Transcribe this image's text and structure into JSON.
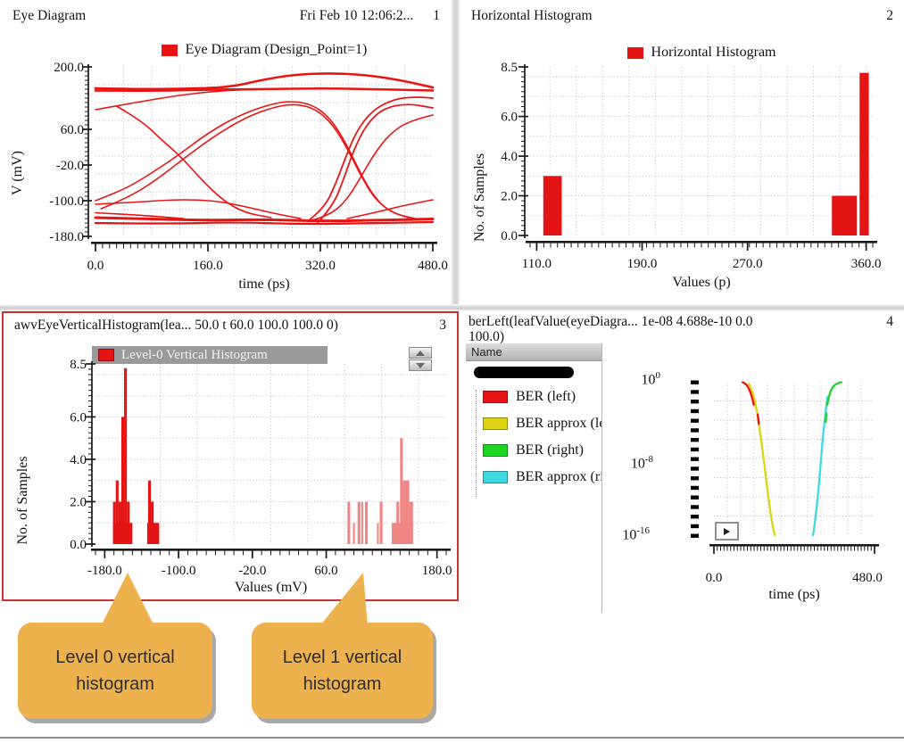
{
  "panels": {
    "eye": {
      "title": "Eye Diagram",
      "timestamp": "Fri Feb 10 12:06:2...",
      "number": "1"
    },
    "hhist": {
      "title": "Horizontal Histogram",
      "number": "2"
    },
    "vhist": {
      "title": "awvEyeVerticalHistogram(lea...  50.0 t 60.0 100.0 100.0 0)",
      "number": "3"
    },
    "ber": {
      "title": "berLeft(leafValue(eyeDiagra...  1e-08  4.688e-10  0.0",
      "title_line2": "100.0)",
      "number": "4",
      "name_column_header": "Name",
      "legend": [
        {
          "label": "BER (left)",
          "color": "#e81414"
        },
        {
          "label": "BER approx (left",
          "color": "#ddd313"
        },
        {
          "label": "BER (right)",
          "color": "#1ed321"
        },
        {
          "label": "BER approx (rig",
          "color": "#3fd9e2"
        }
      ]
    }
  },
  "callouts": [
    {
      "text": "Level 0 vertical histogram"
    },
    {
      "text": "Level 1 vertical histogram"
    }
  ],
  "colors": {
    "trace_red": "#e81414",
    "hist_red": "#e51414",
    "hist_pink": "#ef8585",
    "legend_gray": "#9a9a9a",
    "panel_border_red": "#c9322e",
    "callout_fill": "#edb24e"
  },
  "chart_data": [
    {
      "id": "eye",
      "type": "line",
      "title": "Eye Diagram (Design_Point=1)",
      "xlabel": "time (ps)",
      "ylabel": "V (mV)",
      "xlim": [
        0,
        480
      ],
      "ylim": [
        -180,
        200
      ],
      "grid": true,
      "xticks": [
        {
          "v": 0,
          "label": "0.0"
        },
        {
          "v": 160,
          "label": "160.0"
        },
        {
          "v": 320,
          "label": "320.0"
        },
        {
          "v": 480,
          "label": "480.0"
        }
      ],
      "yticks": [
        {
          "v": 200,
          "label": "200.0"
        },
        {
          "v": 60,
          "label": "60.0"
        },
        {
          "v": -20,
          "label": "-20.0"
        },
        {
          "v": -100,
          "label": "-100.0"
        },
        {
          "v": -180,
          "label": "-180.0"
        }
      ],
      "color": "#e81414",
      "traces": [
        {
          "w": 2.6,
          "pts": [
            [
              0,
              152
            ],
            [
              60,
              150
            ],
            [
              125,
              151
            ],
            [
              190,
              154
            ],
            [
              240,
              172
            ],
            [
              285,
              183
            ],
            [
              335,
              186
            ],
            [
              385,
              182
            ],
            [
              435,
              170
            ],
            [
              480,
              154
            ]
          ]
        },
        {
          "w": 2.6,
          "pts": [
            [
              0,
              147
            ],
            [
              80,
              146
            ],
            [
              160,
              149
            ],
            [
              240,
              150
            ],
            [
              320,
              152
            ],
            [
              400,
              150
            ],
            [
              480,
              147
            ]
          ]
        },
        {
          "w": 1.6,
          "pts": [
            [
              0,
              104
            ],
            [
              60,
              121
            ],
            [
              120,
              137
            ],
            [
              180,
              147
            ],
            [
              240,
              150
            ]
          ]
        },
        {
          "w": 1.6,
          "pts": [
            [
              30,
              112
            ],
            [
              65,
              80
            ],
            [
              95,
              35
            ],
            [
              122,
              -2
            ],
            [
              152,
              -55
            ],
            [
              182,
              -100
            ],
            [
              212,
              -127
            ],
            [
              250,
              -138
            ]
          ]
        },
        {
          "w": 1.6,
          "pts": [
            [
              0,
              -100
            ],
            [
              40,
              -76
            ],
            [
              78,
              -40
            ],
            [
              118,
              2
            ],
            [
              160,
              52
            ],
            [
              205,
              92
            ],
            [
              248,
              116
            ],
            [
              278,
              124
            ],
            [
              308,
              116
            ],
            [
              332,
              88
            ],
            [
              352,
              42
            ],
            [
              372,
              -22
            ],
            [
              392,
              -82
            ],
            [
              415,
              -122
            ],
            [
              445,
              -138
            ]
          ]
        },
        {
          "w": 1.6,
          "pts": [
            [
              8,
              -118
            ],
            [
              48,
              -92
            ],
            [
              86,
              -54
            ],
            [
              122,
              -10
            ],
            [
              168,
              44
            ],
            [
              215,
              88
            ],
            [
              258,
              112
            ],
            [
              288,
              117
            ],
            [
              315,
              104
            ],
            [
              338,
              70
            ],
            [
              358,
              18
            ],
            [
              378,
              -45
            ],
            [
              398,
              -98
            ],
            [
              425,
              -130
            ],
            [
              455,
              -140
            ]
          ]
        },
        {
          "w": 1.8,
          "pts": [
            [
              302,
              -146
            ],
            [
              325,
              -118
            ],
            [
              342,
              -62
            ],
            [
              356,
              -2
            ],
            [
              372,
              58
            ],
            [
              395,
              104
            ],
            [
              425,
              128
            ],
            [
              455,
              133
            ],
            [
              480,
              130
            ]
          ]
        },
        {
          "w": 1.8,
          "pts": [
            [
              316,
              -150
            ],
            [
              338,
              -112
            ],
            [
              354,
              -48
            ],
            [
              368,
              16
            ],
            [
              386,
              72
            ],
            [
              410,
              108
            ],
            [
              445,
              118
            ],
            [
              480,
              108
            ]
          ]
        },
        {
          "w": 1.6,
          "pts": [
            [
              480,
              92
            ],
            [
              448,
              80
            ],
            [
              420,
              52
            ],
            [
              398,
              8
            ],
            [
              380,
              -40
            ],
            [
              362,
              -88
            ],
            [
              344,
              -120
            ],
            [
              322,
              -138
            ],
            [
              302,
              -146
            ]
          ]
        },
        {
          "w": 3.0,
          "pts": [
            [
              0,
              -138
            ],
            [
              80,
              -141
            ],
            [
              160,
              -144
            ],
            [
              240,
              -142
            ],
            [
              320,
              -146
            ],
            [
              400,
              -144
            ],
            [
              480,
              -141
            ]
          ]
        },
        {
          "w": 2.2,
          "pts": [
            [
              0,
              -150
            ],
            [
              100,
              -152
            ],
            [
              200,
              -148
            ],
            [
              300,
              -153
            ],
            [
              400,
              -150
            ],
            [
              480,
              -148
            ]
          ]
        },
        {
          "w": 1.6,
          "pts": [
            [
              0,
              -108
            ],
            [
              60,
              -103
            ],
            [
              120,
              -97
            ],
            [
              170,
              -100
            ],
            [
              210,
              -112
            ],
            [
              252,
              -128
            ],
            [
              292,
              -140
            ]
          ]
        },
        {
          "w": 1.6,
          "pts": [
            [
              480,
              -98
            ],
            [
              440,
              -110
            ],
            [
              400,
              -126
            ],
            [
              358,
              -140
            ]
          ]
        },
        {
          "w": 1.6,
          "pts": [
            [
              0,
              -127
            ],
            [
              60,
              -132
            ],
            [
              125,
              -140
            ]
          ]
        }
      ]
    },
    {
      "id": "hhist",
      "type": "bar",
      "title": "Horizontal Histogram",
      "xlabel": "Values (p)",
      "ylabel": "No. of Samples",
      "xlim": [
        105,
        365
      ],
      "ylim": [
        0,
        8.5
      ],
      "grid": true,
      "xticks": [
        {
          "v": 110,
          "label": "110.0"
        },
        {
          "v": 190,
          "label": "190.0"
        },
        {
          "v": 270,
          "label": "270.0"
        },
        {
          "v": 360,
          "label": "360.0"
        }
      ],
      "yticks": [
        {
          "v": 8.5,
          "label": "8.5"
        },
        {
          "v": 6,
          "label": "6.0"
        },
        {
          "v": 4,
          "label": "4.0"
        },
        {
          "v": 2,
          "label": "2.0"
        },
        {
          "v": 0,
          "label": "0.0"
        }
      ],
      "color": "#e51414",
      "bars": [
        {
          "x0": 115,
          "x1": 129,
          "h": 3.0
        },
        {
          "x0": 334,
          "x1": 353,
          "h": 2.0
        },
        {
          "x0": 355,
          "x1": 362,
          "h": 8.2
        }
      ]
    },
    {
      "id": "vhist",
      "type": "bar",
      "title": "Level-0 Vertical Histogram",
      "xlabel": "Values (mV)",
      "ylabel": "No. of Samples",
      "xlim": [
        -190,
        190
      ],
      "ylim": [
        0,
        8.5
      ],
      "grid": true,
      "xticks": [
        {
          "v": -180,
          "label": "-180.0"
        },
        {
          "v": -100,
          "label": "-100.0"
        },
        {
          "v": -20,
          "label": "-20.0"
        },
        {
          "v": 60,
          "label": "60.0"
        },
        {
          "v": 180,
          "label": "180.0"
        }
      ],
      "yticks": [
        {
          "v": 8.5,
          "label": "8.5"
        },
        {
          "v": 6,
          "label": "6.0"
        },
        {
          "v": 4,
          "label": "4.0"
        },
        {
          "v": 2,
          "label": "2.0"
        },
        {
          "v": 0,
          "label": "0.0"
        }
      ],
      "series": [
        {
          "name": "Level-0 vertical histogram",
          "color": "#e51414",
          "bars": [
            [
              -171,
              -150,
              1
            ],
            [
              -171,
              -168,
              2
            ],
            [
              -168,
              -165,
              3
            ],
            [
              -165,
              -162,
              2
            ],
            [
              -162,
              -159,
              6
            ],
            [
              -159,
              -156,
              8.3
            ],
            [
              -156,
              -153,
              2
            ],
            [
              -134,
              -121,
              1
            ],
            [
              -133,
              -130,
              3
            ],
            [
              -130,
              -127,
              2
            ]
          ]
        },
        {
          "name": "Level-1 vertical histogram",
          "color": "#ef8585",
          "bars": [
            [
              83,
              86,
              2
            ],
            [
              89,
              91,
              1
            ],
            [
              94,
              97,
              2
            ],
            [
              98,
              100,
              2
            ],
            [
              102,
              105,
              2
            ],
            [
              115,
              117,
              1
            ],
            [
              118,
              121,
              2
            ],
            [
              131,
              154,
              1
            ],
            [
              136,
              139,
              2
            ],
            [
              140,
              143,
              5
            ],
            [
              143,
              146,
              3
            ],
            [
              146,
              150,
              3
            ],
            [
              150,
              154,
              2
            ]
          ]
        }
      ]
    },
    {
      "id": "ber",
      "type": "line",
      "xlabel": "time (ps)",
      "xlim": [
        0,
        480
      ],
      "y_log_exponent_range": [
        0,
        -16
      ],
      "grid": true,
      "xticks": [
        {
          "v": 0,
          "label": "0.0"
        },
        {
          "v": 480,
          "label": "480.0"
        }
      ],
      "yticks": [
        {
          "base": "10",
          "exp": "0"
        },
        {
          "base": "10",
          "exp": "-8"
        },
        {
          "base": "10",
          "exp": "-16"
        }
      ],
      "series": [
        {
          "name": "BER approx (left)",
          "color": "#ddd313",
          "pts": [
            [
              105,
              -0.2
            ],
            [
              112,
              -0.8
            ],
            [
              120,
              -1.6
            ],
            [
              126,
              -2.6
            ],
            [
              131,
              -3.6
            ],
            [
              136,
              -4.8
            ],
            [
              141,
              -6
            ],
            [
              147,
              -7.6
            ],
            [
              152,
              -9
            ],
            [
              158,
              -10.8
            ],
            [
              165,
              -12.6
            ],
            [
              171,
              -14.1
            ],
            [
              177,
              -15.3
            ],
            [
              182,
              -16
            ]
          ]
        },
        {
          "name": "BER (left)",
          "color": "#e81414",
          "pts": [
            [
              86,
              -0.05
            ],
            [
              95,
              -0.2
            ],
            [
              103,
              -0.6
            ],
            [
              110,
              -1.2
            ],
            [
              116,
              -1.9
            ],
            [
              119,
              -2.4
            ]
          ],
          "dash": [
            [
              131,
              -3.4
            ],
            [
              134,
              -4.4
            ]
          ]
        },
        {
          "name": "BER approx (right)",
          "color": "#3fd9e2",
          "pts": [
            [
              339,
              -1.6
            ],
            [
              335,
              -2.7
            ],
            [
              330,
              -4.3
            ],
            [
              325,
              -6
            ],
            [
              321,
              -7.7
            ],
            [
              317,
              -9.4
            ],
            [
              313,
              -11
            ],
            [
              308,
              -12.8
            ],
            [
              303,
              -14.3
            ],
            [
              299,
              -15.4
            ],
            [
              296,
              -16
            ]
          ]
        },
        {
          "name": "BER (right)",
          "color": "#1ed321",
          "pts": [
            [
              381,
              -0.05
            ],
            [
              368,
              -0.15
            ],
            [
              356,
              -0.5
            ],
            [
              348,
              -1
            ],
            [
              342,
              -1.8
            ],
            [
              339,
              -2.4
            ]
          ],
          "dash": [
            [
              336,
              -3.3
            ],
            [
              334,
              -4.2
            ]
          ]
        }
      ]
    }
  ]
}
